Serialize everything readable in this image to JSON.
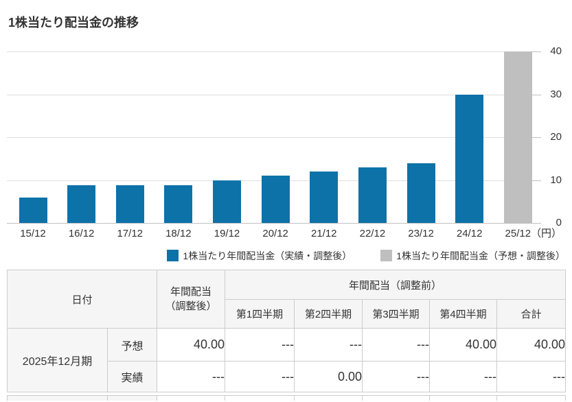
{
  "title": "1株当たり配当金の推移",
  "chart_data": {
    "type": "bar",
    "title": "1株当たり配当金の推移",
    "categories": [
      "15/12",
      "16/12",
      "17/12",
      "18/12",
      "19/12",
      "20/12",
      "21/12",
      "22/12",
      "23/12",
      "24/12",
      "25/12"
    ],
    "series": [
      {
        "name": "1株当たり年間配当金（実績・調整後）",
        "color": "#0d72a8",
        "values": [
          6,
          8.8,
          8.8,
          8.8,
          10,
          11,
          12,
          13,
          14,
          30,
          null
        ]
      },
      {
        "name": "1株当たり年間配当金（予想・調整後）",
        "color": "#bfbfbf",
        "values": [
          null,
          null,
          null,
          null,
          null,
          null,
          null,
          null,
          null,
          null,
          40
        ]
      }
    ],
    "ylim": [
      0,
      40
    ],
    "yticks": [
      0,
      10,
      20,
      30,
      40
    ],
    "unit": "（円）",
    "grid": true,
    "legend_position": "bottom",
    "axis_side": "right"
  },
  "table": {
    "header": {
      "date": "日付",
      "adjusted": "年間配当\n（調整後）",
      "unadjusted_group": "年間配当（調整前）",
      "quarters": [
        "第1四半期",
        "第2四半期",
        "第3四半期",
        "第4四半期",
        "合計"
      ]
    },
    "rows": [
      {
        "period": "2025年12月期",
        "type": "予想",
        "adjusted": "40.00",
        "q1": "---",
        "q2": "---",
        "q3": "---",
        "q4": "40.00",
        "total": "40.00"
      },
      {
        "type": "実績",
        "adjusted": "---",
        "q1": "---",
        "q2": "0.00",
        "q3": "---",
        "q4": "---",
        "total": "---"
      }
    ]
  }
}
